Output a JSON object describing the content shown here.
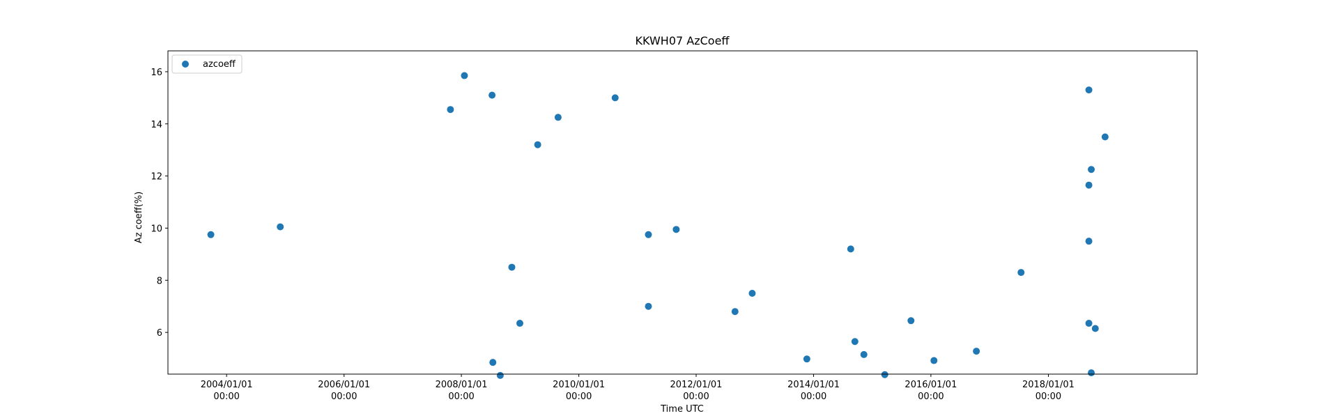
{
  "chart_data": {
    "type": "scatter",
    "title": "KKWH07 AzCoeff",
    "xlabel": "Time UTC",
    "ylabel": "Az coeff(%)",
    "xlim": [
      "2003-01-01",
      "2020-07-15"
    ],
    "ylim": [
      4.4,
      16.8
    ],
    "x_ticks": [
      {
        "date": "2004-01-01",
        "label1": "2004/01/01",
        "label2": "00:00"
      },
      {
        "date": "2006-01-01",
        "label1": "2006/01/01",
        "label2": "00:00"
      },
      {
        "date": "2008-01-01",
        "label1": "2008/01/01",
        "label2": "00:00"
      },
      {
        "date": "2010-01-01",
        "label1": "2010/01/01",
        "label2": "00:00"
      },
      {
        "date": "2012-01-01",
        "label1": "2012/01/01",
        "label2": "00:00"
      },
      {
        "date": "2014-01-01",
        "label1": "2014/01/01",
        "label2": "00:00"
      },
      {
        "date": "2016-01-01",
        "label1": "2016/01/01",
        "label2": "00:00"
      },
      {
        "date": "2018-01-01",
        "label1": "2018/01/01",
        "label2": "00:00"
      }
    ],
    "y_ticks": [
      6,
      8,
      10,
      12,
      14,
      16
    ],
    "grid": false,
    "legend": {
      "position": "top-left",
      "entries": [
        "azcoeff"
      ]
    },
    "series": [
      {
        "name": "azcoeff",
        "color": "#1f77b4",
        "points": [
          {
            "x": "2003-09-25",
            "y": 9.75
          },
          {
            "x": "2004-11-30",
            "y": 10.05
          },
          {
            "x": "2007-10-25",
            "y": 14.55
          },
          {
            "x": "2008-01-20",
            "y": 15.85
          },
          {
            "x": "2008-07-10",
            "y": 15.1
          },
          {
            "x": "2008-07-15",
            "y": 4.85
          },
          {
            "x": "2008-08-30",
            "y": 4.35
          },
          {
            "x": "2008-11-10",
            "y": 8.5
          },
          {
            "x": "2008-12-30",
            "y": 6.35
          },
          {
            "x": "2009-04-20",
            "y": 13.2
          },
          {
            "x": "2009-08-25",
            "y": 14.25
          },
          {
            "x": "2010-08-15",
            "y": 15.0
          },
          {
            "x": "2011-03-10",
            "y": 9.75
          },
          {
            "x": "2011-03-10",
            "y": 7.0
          },
          {
            "x": "2011-08-30",
            "y": 9.95
          },
          {
            "x": "2012-08-30",
            "y": 6.8
          },
          {
            "x": "2012-12-15",
            "y": 7.5
          },
          {
            "x": "2013-11-20",
            "y": 4.98
          },
          {
            "x": "2014-08-20",
            "y": 9.2
          },
          {
            "x": "2014-09-15",
            "y": 5.65
          },
          {
            "x": "2014-11-10",
            "y": 5.15
          },
          {
            "x": "2015-03-20",
            "y": 4.38
          },
          {
            "x": "2015-08-30",
            "y": 6.45
          },
          {
            "x": "2016-01-20",
            "y": 4.92
          },
          {
            "x": "2016-10-10",
            "y": 5.28
          },
          {
            "x": "2017-07-15",
            "y": 8.3
          },
          {
            "x": "2018-09-10",
            "y": 15.3
          },
          {
            "x": "2018-09-10",
            "y": 11.65
          },
          {
            "x": "2018-09-10",
            "y": 9.5
          },
          {
            "x": "2018-09-10",
            "y": 6.35
          },
          {
            "x": "2018-09-25",
            "y": 12.25
          },
          {
            "x": "2018-09-25",
            "y": 4.45
          },
          {
            "x": "2018-10-20",
            "y": 6.15
          },
          {
            "x": "2018-12-20",
            "y": 13.5
          }
        ]
      }
    ]
  }
}
